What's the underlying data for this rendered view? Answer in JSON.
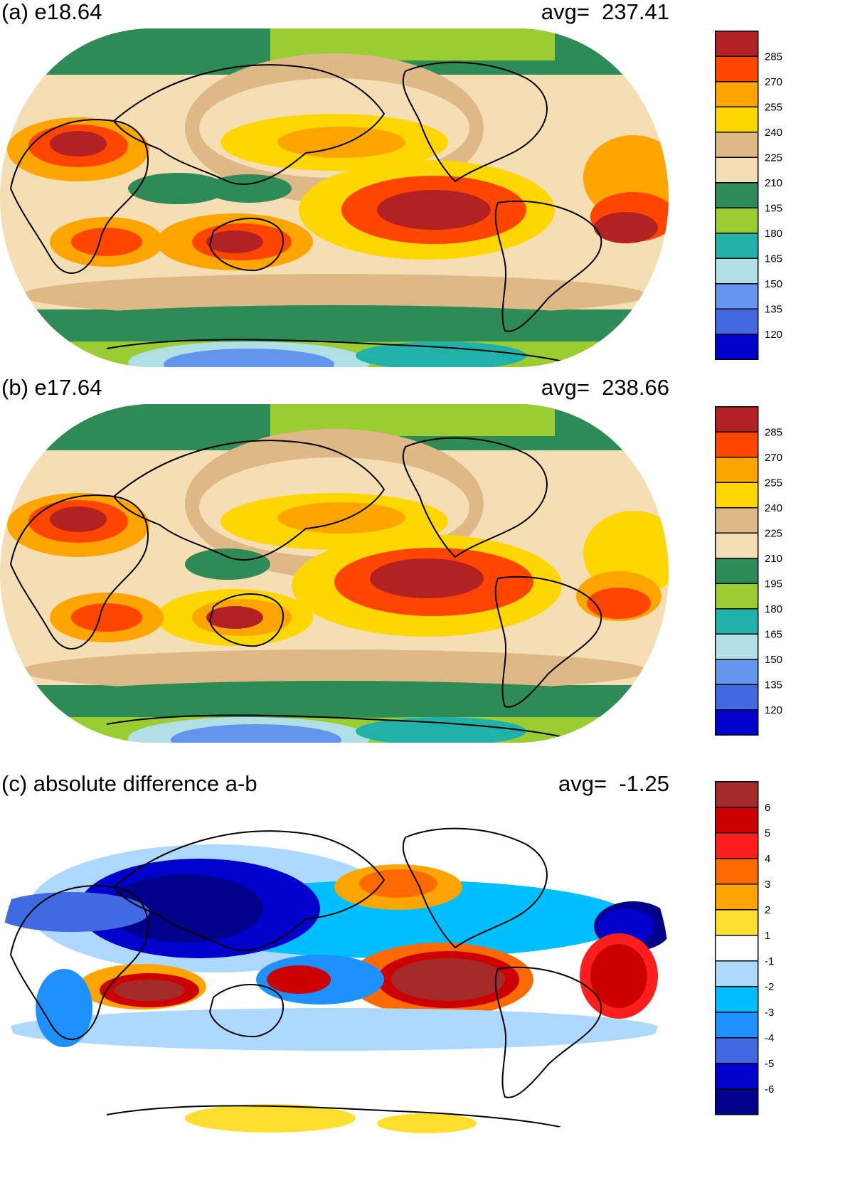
{
  "panels": [
    {
      "title": "(a) e18.64",
      "avg_label": "avg=",
      "avg_value": "237.41",
      "kind": "absolute",
      "legend_labels": [
        "285",
        "270",
        "255",
        "240",
        "225",
        "210",
        "195",
        "180",
        "165",
        "150",
        "135",
        "120"
      ],
      "legend_colors": [
        "#b22222",
        "#ff4500",
        "#ffa500",
        "#ffd700",
        "#deb887",
        "#f5deb3",
        "#2e8b57",
        "#9acd32",
        "#20b2aa",
        "#b0e0e6",
        "#6495ed",
        "#4169e1",
        "#0000cd"
      ]
    },
    {
      "title": "(b) e17.64",
      "avg_label": "avg=",
      "avg_value": "238.66",
      "kind": "absolute",
      "legend_labels": [
        "285",
        "270",
        "255",
        "240",
        "225",
        "210",
        "195",
        "180",
        "165",
        "150",
        "135",
        "120"
      ],
      "legend_colors": [
        "#b22222",
        "#ff4500",
        "#ffa500",
        "#ffd700",
        "#deb887",
        "#f5deb3",
        "#2e8b57",
        "#9acd32",
        "#20b2aa",
        "#b0e0e6",
        "#6495ed",
        "#4169e1",
        "#0000cd"
      ]
    },
    {
      "title": "(c) absolute difference a-b",
      "avg_label": "avg=",
      "avg_value": "-1.25",
      "kind": "difference",
      "legend_labels": [
        "6",
        "5",
        "4",
        "3",
        "2",
        "1",
        "-1",
        "-2",
        "-3",
        "-4",
        "-5",
        "-6"
      ],
      "legend_colors": [
        "#a52a2a",
        "#cd0000",
        "#ff1e1e",
        "#ff6a00",
        "#ffa500",
        "#ffdf2e",
        "#ffffff",
        "#add8ff",
        "#00bfff",
        "#1e90ff",
        "#4169e1",
        "#0000cd",
        "#00008b"
      ]
    }
  ],
  "chart_data": [
    {
      "type": "heatmap",
      "title": "(a) e18.64",
      "average": 237.41,
      "projection": "Robinson global map",
      "colorbar_levels": [
        120,
        135,
        150,
        165,
        180,
        195,
        210,
        225,
        240,
        255,
        270,
        285
      ]
    },
    {
      "type": "heatmap",
      "title": "(b) e17.64",
      "average": 238.66,
      "projection": "Robinson global map",
      "colorbar_levels": [
        120,
        135,
        150,
        165,
        180,
        195,
        210,
        225,
        240,
        255,
        270,
        285
      ]
    },
    {
      "type": "heatmap",
      "title": "(c) absolute difference a-b",
      "average": -1.25,
      "projection": "Robinson global map",
      "colorbar_levels": [
        -6,
        -5,
        -4,
        -3,
        -2,
        -1,
        1,
        2,
        3,
        4,
        5,
        6
      ]
    }
  ]
}
